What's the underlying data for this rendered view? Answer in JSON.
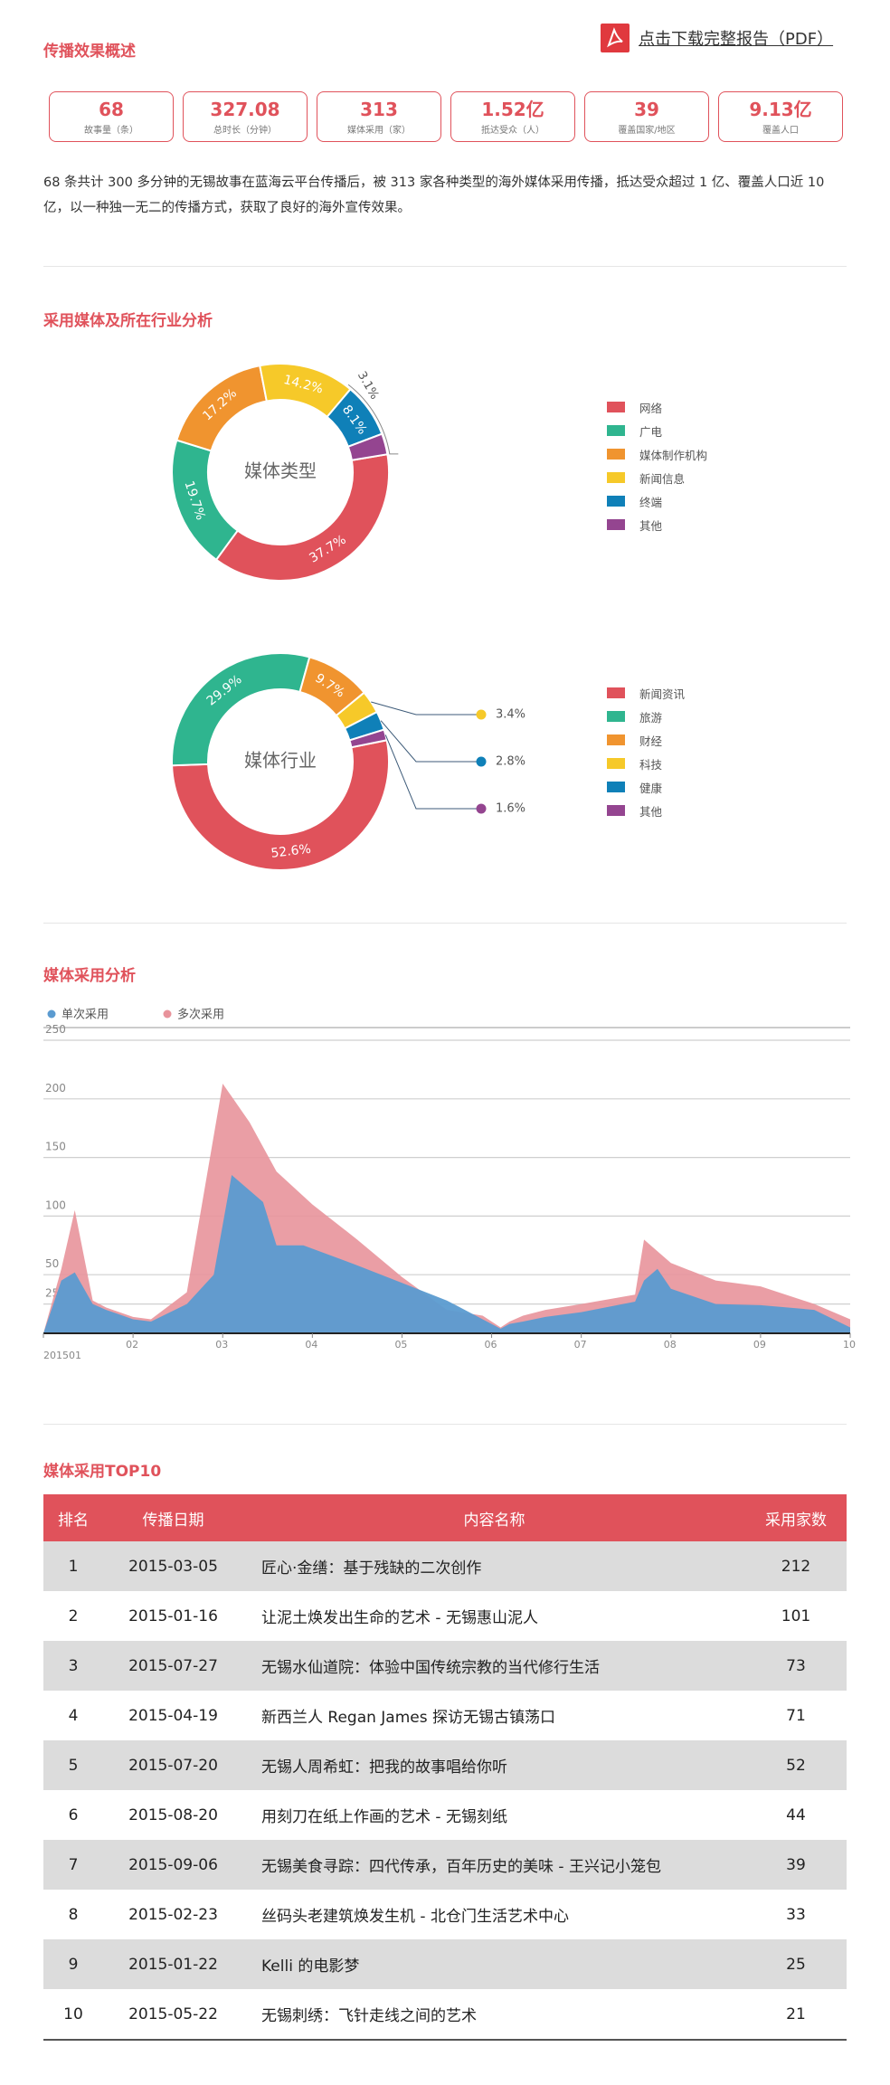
{
  "overview": {
    "title": "传播效果概述"
  },
  "pdf": {
    "label": "点击下载完整报告（PDF）"
  },
  "stats": [
    {
      "value": "68",
      "label": "故事量（条）"
    },
    {
      "value": "327.08",
      "label": "总时长（分钟）"
    },
    {
      "value": "313",
      "label": "媒体采用（家）"
    },
    {
      "value": "1.52亿",
      "label": "抵达受众（人）"
    },
    {
      "value": "39",
      "label": "覆盖国家/地区"
    },
    {
      "value": "9.13亿",
      "label": "覆盖人口"
    }
  ],
  "summary": "68 条共计  300 多分钟的无锡故事在蓝海云平台传播后，被  313 家各种类型的海外媒体采用传播，抵达受众超过  1 亿、覆盖人口近 10 亿，以一种独一无二的传播方式，获取了良好的海外宣传效果。",
  "media_section": {
    "title": "采用媒体及所在行业分析"
  },
  "adoption_section": {
    "title": "媒体采用分析"
  },
  "top10_section": {
    "title": "媒体采用TOP10"
  },
  "colors": {
    "accent": "#e0525b",
    "single": "#5b9bd0",
    "multi": "#e8939b"
  },
  "chart_data": [
    {
      "type": "pie",
      "center_label": "媒体类型",
      "slices": [
        {
          "name": "网络",
          "value": 37.7,
          "label": "37.7%",
          "color": "#e0525b"
        },
        {
          "name": "广电",
          "value": 19.7,
          "label": "19.7%",
          "color": "#2fb58f"
        },
        {
          "name": "媒体制作机构",
          "value": 17.2,
          "label": "17.2%",
          "color": "#f0942f"
        },
        {
          "name": "新闻信息",
          "value": 14.2,
          "label": "14.2%",
          "color": "#f6c929"
        },
        {
          "name": "终端",
          "value": 8.1,
          "label": "8.1%",
          "color": "#0f80b8"
        },
        {
          "name": "其他",
          "value": 3.1,
          "label": "3.1%",
          "color": "#944590"
        }
      ]
    },
    {
      "type": "pie",
      "center_label": "媒体行业",
      "slices": [
        {
          "name": "新闻资讯",
          "value": 52.6,
          "label": "52.6%",
          "color": "#e0525b"
        },
        {
          "name": "旅游",
          "value": 29.9,
          "label": "29.9%",
          "color": "#2fb58f"
        },
        {
          "name": "财经",
          "value": 9.7,
          "label": "9.7%",
          "color": "#f0942f"
        },
        {
          "name": "科技",
          "value": 3.4,
          "label": "3.4%",
          "color": "#f6c929"
        },
        {
          "name": "健康",
          "value": 2.8,
          "label": "2.8%",
          "color": "#0f80b8"
        },
        {
          "name": "其他",
          "value": 1.6,
          "label": "1.6%",
          "color": "#944590"
        }
      ]
    },
    {
      "type": "area",
      "legend": [
        "单次采用",
        "多次采用"
      ],
      "ylim": [
        0,
        250
      ],
      "yticks": [
        25,
        50,
        100,
        150,
        200,
        250
      ],
      "xlim": [
        0,
        9
      ],
      "xticks": [
        {
          "x": 0,
          "label": "201501"
        },
        {
          "x": 1,
          "label": "02"
        },
        {
          "x": 2,
          "label": "03"
        },
        {
          "x": 3,
          "label": "04"
        },
        {
          "x": 4,
          "label": "05"
        },
        {
          "x": 5,
          "label": "06"
        },
        {
          "x": 6,
          "label": "07"
        },
        {
          "x": 7,
          "label": "08"
        },
        {
          "x": 8,
          "label": "09"
        },
        {
          "x": 9,
          "label": "10"
        }
      ],
      "series": [
        {
          "name": "多次采用",
          "x": [
            0,
            0.2,
            0.35,
            0.55,
            0.7,
            1.0,
            1.2,
            1.6,
            2.0,
            2.3,
            2.6,
            3.0,
            3.5,
            4.0,
            4.5,
            4.9,
            5.1,
            5.2,
            5.35,
            5.6,
            6.0,
            6.6,
            6.7,
            7.0,
            7.5,
            8.0,
            8.6,
            9.0
          ],
          "values": [
            0,
            55,
            105,
            28,
            22,
            14,
            12,
            35,
            213,
            180,
            138,
            110,
            80,
            48,
            20,
            15,
            5,
            10,
            15,
            20,
            25,
            33,
            80,
            60,
            45,
            40,
            25,
            12
          ]
        },
        {
          "name": "单次采用",
          "x": [
            0,
            0.2,
            0.35,
            0.55,
            0.7,
            1.0,
            1.2,
            1.6,
            1.9,
            2.1,
            2.45,
            2.6,
            2.9,
            3.5,
            4.0,
            4.5,
            4.9,
            5.1,
            5.2,
            5.35,
            5.6,
            6.0,
            6.6,
            6.7,
            6.85,
            7.0,
            7.5,
            8.0,
            8.6,
            9.0
          ],
          "values": [
            0,
            45,
            52,
            25,
            20,
            12,
            10,
            25,
            50,
            135,
            112,
            75,
            75,
            58,
            43,
            28,
            12,
            4,
            8,
            10,
            14,
            18,
            27,
            45,
            55,
            38,
            25,
            24,
            20,
            5
          ]
        }
      ]
    }
  ],
  "top10": {
    "columns": [
      "排名",
      "传播日期",
      "内容名称",
      "采用家数"
    ],
    "rows": [
      {
        "rank": "1",
        "date": "2015-03-05",
        "title": "匠心·金缮：基于残缺的二次创作",
        "count": "212"
      },
      {
        "rank": "2",
        "date": "2015-01-16",
        "title": "让泥土焕发出生命的艺术 - 无锡惠山泥人",
        "count": "101"
      },
      {
        "rank": "3",
        "date": "2015-07-27",
        "title": "无锡水仙道院：体验中国传统宗教的当代修行生活",
        "count": "73"
      },
      {
        "rank": "4",
        "date": "2015-04-19",
        "title": "新西兰人 Regan James 探访无锡古镇荡口",
        "count": "71"
      },
      {
        "rank": "5",
        "date": "2015-07-20",
        "title": "无锡人周希虹：把我的故事唱给你听",
        "count": "52"
      },
      {
        "rank": "6",
        "date": "2015-08-20",
        "title": "用刻刀在纸上作画的艺术 - 无锡刻纸",
        "count": "44"
      },
      {
        "rank": "7",
        "date": "2015-09-06",
        "title": "无锡美食寻踪：四代传承，百年历史的美味 - 王兴记小笼包",
        "count": "39"
      },
      {
        "rank": "8",
        "date": "2015-02-23",
        "title": "丝码头老建筑焕发生机 - 北仓门生活艺术中心",
        "count": "33"
      },
      {
        "rank": "9",
        "date": "2015-01-22",
        "title": "Kelli 的电影梦",
        "count": "25"
      },
      {
        "rank": "10",
        "date": "2015-05-22",
        "title": "无锡刺绣：飞针走线之间的艺术",
        "count": "21"
      }
    ]
  }
}
